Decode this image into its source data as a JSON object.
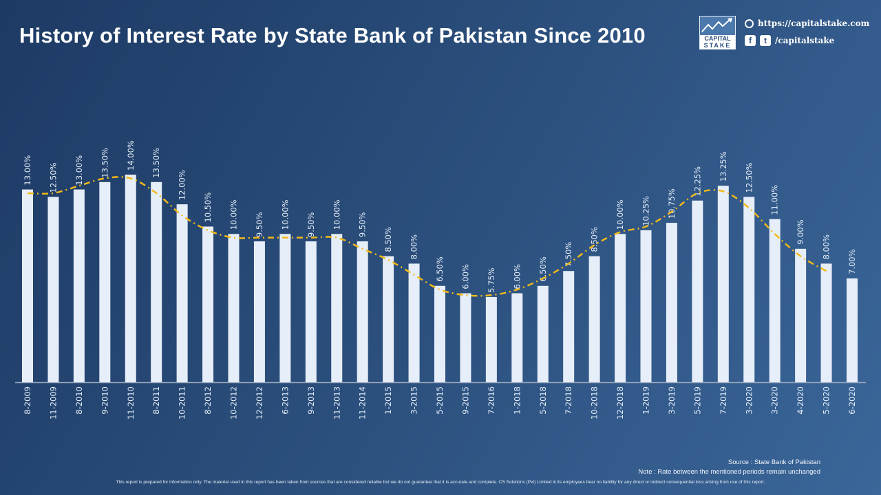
{
  "title": "History of Interest Rate by State Bank of Pakistan Since 2010",
  "logo": {
    "line1": "CAPITAL",
    "line2": "STAKE"
  },
  "contact": {
    "website": "https://capitalstake.com",
    "social": "/capitalstake",
    "icons": [
      "globe-icon",
      "facebook-icon",
      "twitter-icon"
    ]
  },
  "chart_data": {
    "type": "bar",
    "title": "History of Interest Rate by State Bank of Pakistan Since 2010",
    "categories": [
      "8-2009",
      "11-2009",
      "8-2010",
      "9-2010",
      "11-2010",
      "8-2011",
      "10-2011",
      "8-2012",
      "10-2012",
      "12-2012",
      "6-2013",
      "9-2013",
      "11-2013",
      "11-2014",
      "1-2015",
      "3-2015",
      "5-2015",
      "9-2015",
      "7-2016",
      "1-2018",
      "5-2018",
      "7-2018",
      "10-2018",
      "12-2018",
      "1-2019",
      "3-2019",
      "5-2019",
      "7-2019",
      "3-2020",
      "3-2020",
      "4-2020",
      "5-2020",
      "6-2020"
    ],
    "values": [
      13.0,
      12.5,
      13.0,
      13.5,
      14.0,
      13.5,
      12.0,
      10.5,
      10.0,
      9.5,
      10.0,
      9.5,
      10.0,
      9.5,
      8.5,
      8.0,
      6.5,
      6.0,
      5.75,
      6.0,
      6.5,
      7.5,
      8.5,
      10.0,
      10.25,
      10.75,
      12.25,
      13.25,
      12.5,
      11.0,
      9.0,
      8.0,
      7.0
    ],
    "data_labels": [
      "13.00%",
      "12.50%",
      "13.00%",
      "13.50%",
      "14.00%",
      "13.50%",
      "12.00%",
      "10.50%",
      "10.00%",
      "9.50%",
      "10.00%",
      "9.50%",
      "10.00%",
      "9.50%",
      "8.50%",
      "8.00%",
      "6.50%",
      "6.00%",
      "5.75%",
      "6.00%",
      "6.50%",
      "7.50%",
      "8.50%",
      "10.00%",
      "10.25%",
      "10.75%",
      "12.25%",
      "13.25%",
      "12.50%",
      "11.00%",
      "9.00%",
      "8.00%",
      "7.00%"
    ],
    "unit": "%",
    "ylim": [
      0,
      14
    ],
    "grid": false,
    "trendline": {
      "type": "moving_average",
      "period": 2,
      "color": "#f2b918",
      "style": "dash-dot"
    },
    "bar_color": "#e6eef9"
  },
  "footer": {
    "source": "Source : State Bank of Pakistan",
    "note": "Note : Rate between the mentioned periods remain unchanged",
    "disclaimer": "This report is prepared for information only. The material used in this report has been taken from sources that are considered reliable but we do not guarantee that it is accurate and complete. CS Solutions (Pvt) Limited & its employees bear no liability for any direct or indirect consequential loss arising from use of this report."
  }
}
